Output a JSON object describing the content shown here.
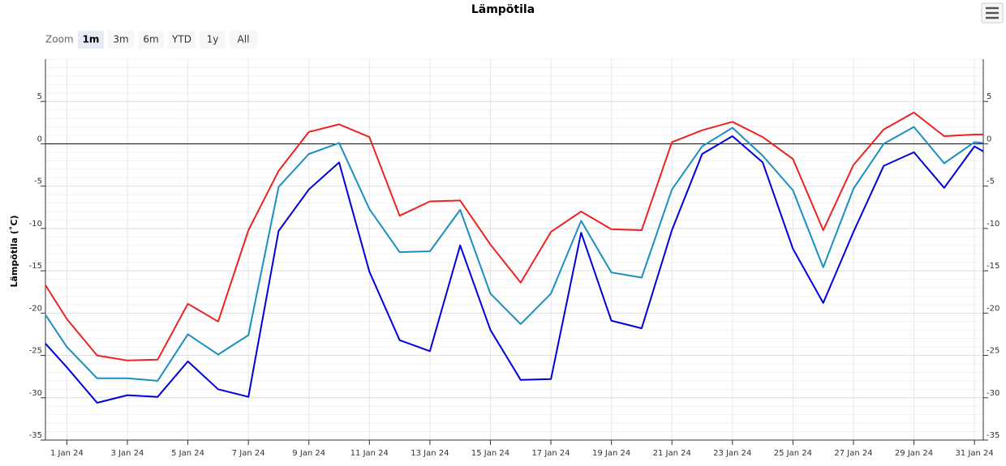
{
  "title": "Lämpötila",
  "range_selector": {
    "label": "Zoom",
    "buttons": [
      "1m",
      "3m",
      "6m",
      "YTD",
      "1y",
      "All"
    ],
    "selected": 0
  },
  "chart_data": {
    "type": "line",
    "y_title": "Lämpötila (˚C)",
    "x": [
      "2023-12-31T07:00",
      "2024-01-01",
      "2024-01-02",
      "2024-01-03",
      "2024-01-04",
      "2024-01-05",
      "2024-01-06",
      "2024-01-07",
      "2024-01-08",
      "2024-01-09",
      "2024-01-10",
      "2024-01-11",
      "2024-01-12",
      "2024-01-13",
      "2024-01-14",
      "2024-01-15",
      "2024-01-16",
      "2024-01-17",
      "2024-01-18",
      "2024-01-19",
      "2024-01-20",
      "2024-01-21",
      "2024-01-22",
      "2024-01-23",
      "2024-01-24",
      "2024-01-25",
      "2024-01-26",
      "2024-01-27",
      "2024-01-28",
      "2024-01-29",
      "2024-01-30",
      "2024-01-31",
      "2024-01-31T07:00"
    ],
    "series": [
      {
        "color": "#ee2222",
        "values": [
          -16.7,
          -20.7,
          -25,
          -25.6,
          -25.5,
          -18.9,
          -21,
          -10.2,
          -3.2,
          1.4,
          2.3,
          0.8,
          -8.5,
          -6.8,
          -6.7,
          -11.9,
          -16.4,
          -10.4,
          -8,
          -10.1,
          -10.2,
          0.2,
          1.6,
          2.6,
          0.8,
          -1.8,
          -10.2,
          -2.5,
          1.7,
          3.7,
          0.9,
          1.1,
          1.1
        ]
      },
      {
        "color": "#1a8fc0",
        "values": [
          -20.2,
          -24,
          -27.7,
          -27.7,
          -28,
          -22.5,
          -24.9,
          -22.6,
          -5.1,
          -1.2,
          0.1,
          -7.7,
          -12.8,
          -12.7,
          -7.8,
          -17.7,
          -21.3,
          -17.7,
          -9.1,
          -15.2,
          -15.8,
          -5.4,
          -0.3,
          1.9,
          -1.4,
          -5.5,
          -14.6,
          -5.3,
          0,
          2,
          -2.3,
          0.2,
          0.1
        ]
      },
      {
        "color": "#0000dd",
        "values": [
          -23.6,
          -26.4,
          -30.6,
          -29.7,
          -29.9,
          -25.7,
          -29,
          -29.9,
          -10.3,
          -5.4,
          -2.2,
          -15.1,
          -23.2,
          -24.5,
          -12,
          -22,
          -27.9,
          -27.8,
          -10.5,
          -20.9,
          -21.8,
          -10.2,
          -1.2,
          0.9,
          -2.2,
          -12.4,
          -18.8,
          -10.4,
          -2.6,
          -1,
          -5.2,
          -0.3,
          -0.9
        ]
      }
    ],
    "xlim": [
      "2023-12-31T07:00",
      "2024-01-31T07:00"
    ],
    "xticks": [
      {
        "value": "2024-01-01",
        "label": "1 Jan 24"
      },
      {
        "value": "2024-01-03",
        "label": "3 Jan 24"
      },
      {
        "value": "2024-01-05",
        "label": "5 Jan 24"
      },
      {
        "value": "2024-01-07",
        "label": "7 Jan 24"
      },
      {
        "value": "2024-01-09",
        "label": "9 Jan 24"
      },
      {
        "value": "2024-01-11",
        "label": "11 Jan 24"
      },
      {
        "value": "2024-01-13",
        "label": "13 Jan 24"
      },
      {
        "value": "2024-01-15",
        "label": "15 Jan 24"
      },
      {
        "value": "2024-01-17",
        "label": "17 Jan 24"
      },
      {
        "value": "2024-01-19",
        "label": "19 Jan 24"
      },
      {
        "value": "2024-01-21",
        "label": "21 Jan 24"
      },
      {
        "value": "2024-01-23",
        "label": "23 Jan 24"
      },
      {
        "value": "2024-01-25",
        "label": "25 Jan 24"
      },
      {
        "value": "2024-01-27",
        "label": "27 Jan 24"
      },
      {
        "value": "2024-01-29",
        "label": "29 Jan 24"
      },
      {
        "value": "2024-01-31",
        "label": "31 Jan 24"
      }
    ],
    "ylim": [
      -35,
      10
    ],
    "yticks": [
      -35,
      -30,
      -25,
      -20,
      -15,
      -10,
      -5,
      0,
      5
    ],
    "grid": true,
    "minor_grid": true,
    "y_axis_both_sides": true,
    "positive_label_color": "#cc0000",
    "negative_label_color": "#0000aa",
    "plot_lines": [
      {
        "value": 0,
        "color": "#000080"
      }
    ]
  }
}
